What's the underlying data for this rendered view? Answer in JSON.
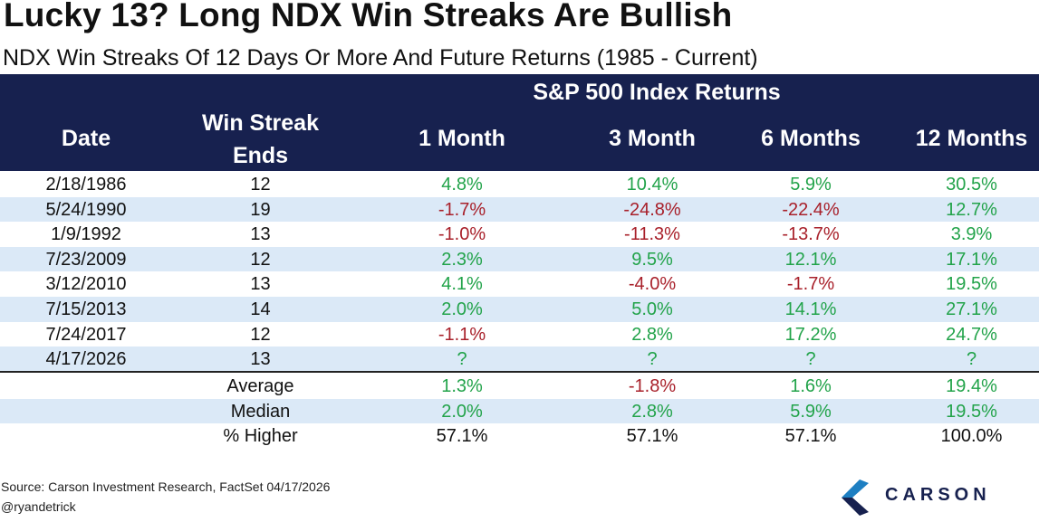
{
  "title": "Lucky 13? Long NDX Win Streaks Are Bullish",
  "subtitle": "NDX Win Streaks Of 12 Days Or More And Future Returns (1985 - Current)",
  "table": {
    "group_header": "S&P 500 Index Returns",
    "columns": [
      "Date",
      "Win Streak Ends",
      "1 Month",
      "3 Month",
      "6 Months",
      "12 Months"
    ],
    "rows": [
      {
        "date": "2/18/1986",
        "streak": "12",
        "m1": "4.8%",
        "m3": "10.4%",
        "m6": "5.9%",
        "m12": "30.5%"
      },
      {
        "date": "5/24/1990",
        "streak": "19",
        "m1": "-1.7%",
        "m3": "-24.8%",
        "m6": "-22.4%",
        "m12": "12.7%"
      },
      {
        "date": "1/9/1992",
        "streak": "13",
        "m1": "-1.0%",
        "m3": "-11.3%",
        "m6": "-13.7%",
        "m12": "3.9%"
      },
      {
        "date": "7/23/2009",
        "streak": "12",
        "m1": "2.3%",
        "m3": "9.5%",
        "m6": "12.1%",
        "m12": "17.1%"
      },
      {
        "date": "3/12/2010",
        "streak": "13",
        "m1": "4.1%",
        "m3": "-4.0%",
        "m6": "-1.7%",
        "m12": "19.5%"
      },
      {
        "date": "7/15/2013",
        "streak": "14",
        "m1": "2.0%",
        "m3": "5.0%",
        "m6": "14.1%",
        "m12": "27.1%"
      },
      {
        "date": "7/24/2017",
        "streak": "12",
        "m1": "-1.1%",
        "m3": "2.8%",
        "m6": "17.2%",
        "m12": "24.7%"
      },
      {
        "date": "4/17/2026",
        "streak": "13",
        "m1": "?",
        "m3": "?",
        "m6": "?",
        "m12": "?"
      }
    ],
    "summary": [
      {
        "label": "Average",
        "m1": "1.3%",
        "m3": "-1.8%",
        "m6": "1.6%",
        "m12": "19.4%"
      },
      {
        "label": "Median",
        "m1": "2.0%",
        "m3": "2.8%",
        "m6": "5.9%",
        "m12": "19.5%"
      },
      {
        "label": "% Higher",
        "m1": "57.1%",
        "m3": "57.1%",
        "m6": "57.1%",
        "m12": "100.0%"
      }
    ]
  },
  "footer": {
    "source": "Source: Carson Investment Research, FactSet 04/17/2026",
    "handle": "@ryandetrick"
  },
  "logo": {
    "text": "CARSON"
  },
  "colors": {
    "header_bg": "#17214f",
    "positive": "#22a34a",
    "negative": "#a8202a",
    "row_shade": "#dbe9f7"
  }
}
